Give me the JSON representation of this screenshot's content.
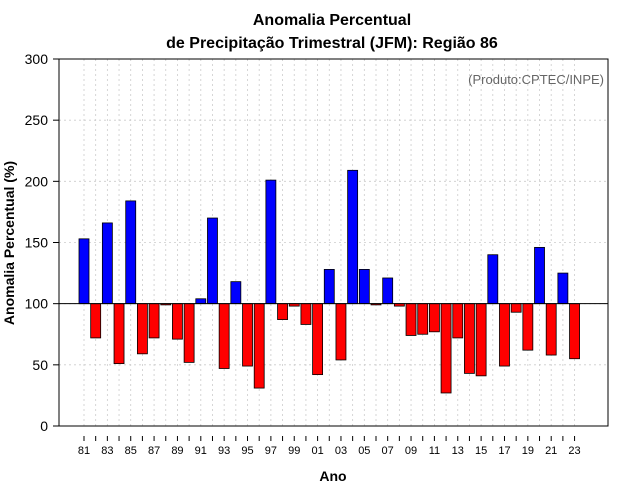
{
  "chart_data": {
    "type": "bar",
    "title_line1": "Anomalia Percentual",
    "title_line2": "de Precipitação Trimestral (JFM): Região 86",
    "xlabel": "Ano",
    "ylabel": "Anomalia Percentual (%)",
    "credit": "(Produto:CPTEC/INPE)",
    "baseline": 100,
    "ylim": [
      0,
      300
    ],
    "yticks": [
      0,
      50,
      100,
      150,
      200,
      250,
      300
    ],
    "grid": true,
    "colors": {
      "above": "#0000ff",
      "below": "#ff0000",
      "outline": "#000000",
      "grid": "#cccccc"
    },
    "xtick_labels": [
      "81",
      "83",
      "85",
      "87",
      "89",
      "91",
      "93",
      "95",
      "97",
      "99",
      "01",
      "03",
      "05",
      "07",
      "09",
      "11",
      "13",
      "15",
      "17",
      "19",
      "21",
      "23"
    ],
    "categories": [
      "1981",
      "1982",
      "1983",
      "1984",
      "1985",
      "1986",
      "1987",
      "1988",
      "1989",
      "1990",
      "1991",
      "1992",
      "1993",
      "1994",
      "1995",
      "1996",
      "1997",
      "1998",
      "1999",
      "2000",
      "2001",
      "2002",
      "2003",
      "2004",
      "2005",
      "2006",
      "2007",
      "2008",
      "2009",
      "2010",
      "2011",
      "2012",
      "2013",
      "2014",
      "2015",
      "2016",
      "2017",
      "2018",
      "2019",
      "2020",
      "2021",
      "2022",
      "2023"
    ],
    "values": [
      153,
      72,
      166,
      51,
      184,
      59,
      72,
      99,
      71,
      52,
      104,
      170,
      47,
      118,
      49,
      31,
      201,
      87,
      98,
      83,
      42,
      128,
      54,
      209,
      128,
      99,
      121,
      98,
      74,
      75,
      77,
      27,
      72,
      43,
      41,
      140,
      49,
      93,
      62,
      146,
      58,
      125,
      55
    ]
  }
}
